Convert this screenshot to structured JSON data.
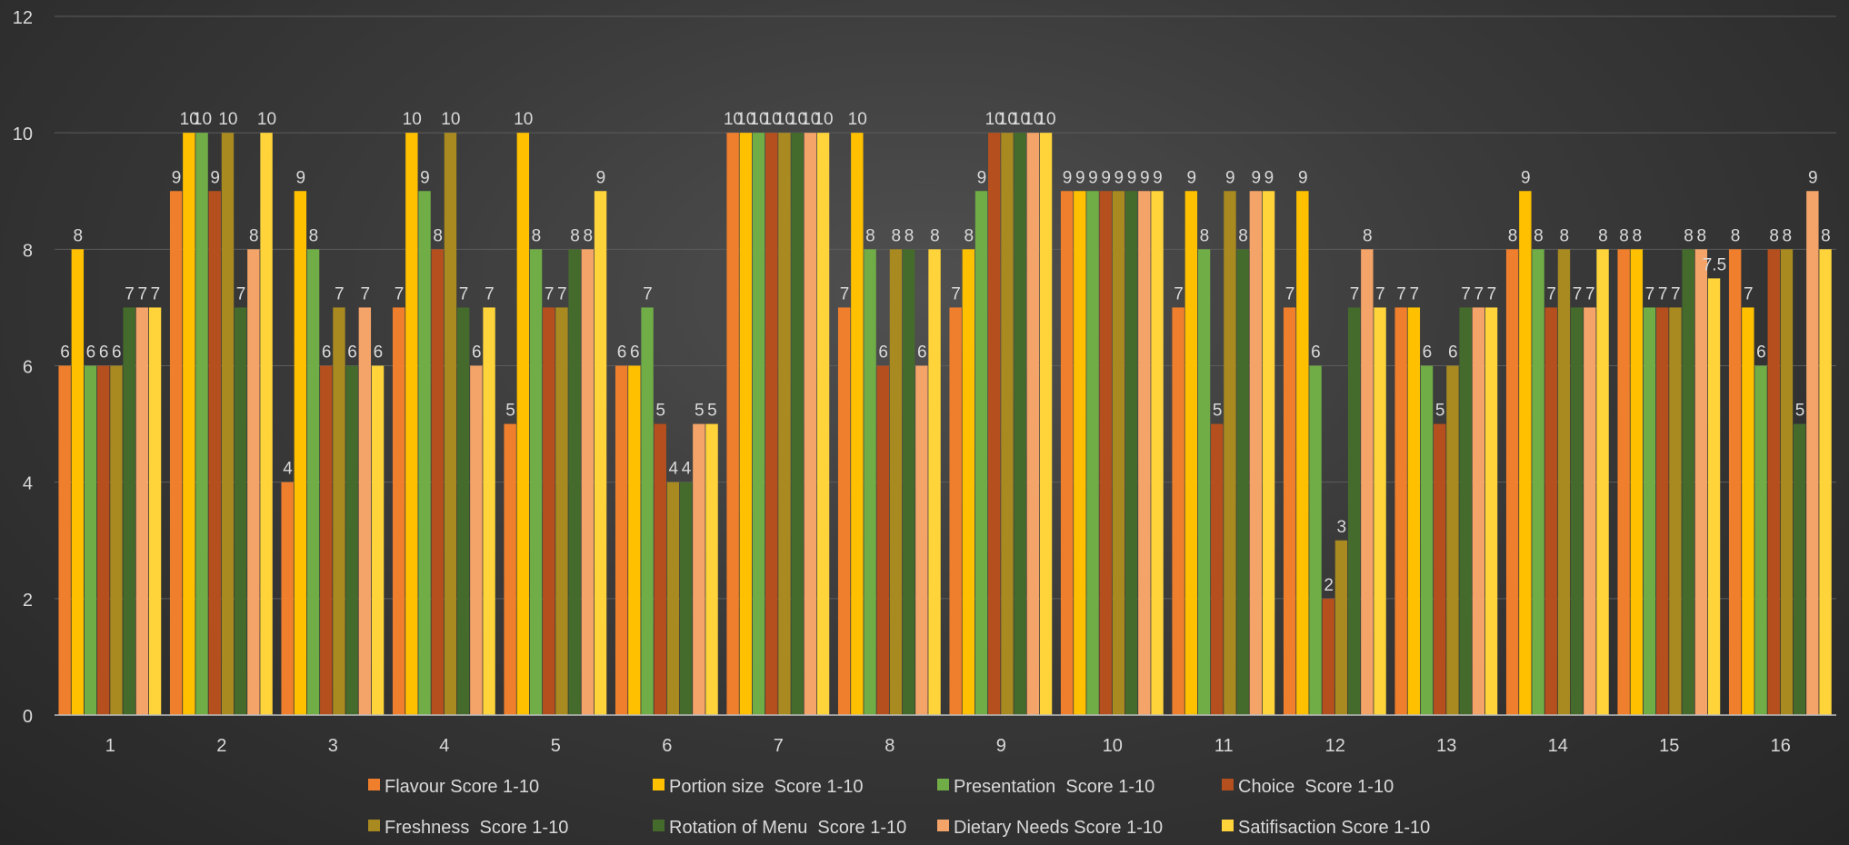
{
  "chart_data": {
    "type": "bar",
    "categories": [
      "1",
      "2",
      "3",
      "4",
      "5",
      "6",
      "7",
      "8",
      "9",
      "10",
      "11",
      "12",
      "13",
      "14",
      "15",
      "16"
    ],
    "yticks": [
      "0",
      "2",
      "4",
      "6",
      "8",
      "10",
      "12"
    ],
    "ylim": [
      0,
      12
    ],
    "grid": true,
    "legend_position": "bottom",
    "series": [
      {
        "name": "Flavour Score 1-10",
        "color": "#F07F2D",
        "values": [
          6,
          9,
          4,
          7,
          5,
          6,
          10,
          7,
          7,
          9,
          7,
          7,
          7,
          8,
          8,
          8
        ]
      },
      {
        "name": "Portion size  Score 1-10",
        "color": "#FFC000",
        "values": [
          8,
          10,
          9,
          10,
          10,
          6,
          10,
          10,
          8,
          9,
          9,
          9,
          7,
          9,
          8,
          7
        ]
      },
      {
        "name": "Presentation  Score 1-10",
        "color": "#70AD47",
        "values": [
          6,
          10,
          8,
          9,
          8,
          7,
          10,
          8,
          9,
          9,
          8,
          6,
          6,
          8,
          7,
          6
        ]
      },
      {
        "name": "Choice  Score 1-10",
        "color": "#B5501E",
        "values": [
          6,
          9,
          6,
          8,
          7,
          5,
          10,
          6,
          10,
          9,
          5,
          2,
          5,
          7,
          7,
          8
        ]
      },
      {
        "name": "Freshness  Score 1-10",
        "color": "#A88A20",
        "values": [
          6,
          10,
          7,
          10,
          7,
          4,
          10,
          8,
          10,
          9,
          9,
          3,
          6,
          8,
          7,
          8
        ]
      },
      {
        "name": "Rotation of Menu  Score 1-10",
        "color": "#456B2C",
        "values": [
          7,
          7,
          6,
          7,
          8,
          4,
          10,
          8,
          10,
          9,
          8,
          7,
          7,
          7,
          8,
          5
        ]
      },
      {
        "name": "Dietary Needs Score 1-10",
        "color": "#F4A469",
        "values": [
          7,
          8,
          7,
          6,
          8,
          5,
          10,
          6,
          10,
          9,
          9,
          8,
          7,
          7,
          8,
          9
        ]
      },
      {
        "name": "Satifisaction Score 1-10",
        "color": "#FFD43B",
        "values": [
          7,
          10,
          6,
          7,
          9,
          5,
          10,
          8,
          10,
          9,
          9,
          7,
          7,
          8,
          7.5,
          8
        ]
      }
    ]
  }
}
